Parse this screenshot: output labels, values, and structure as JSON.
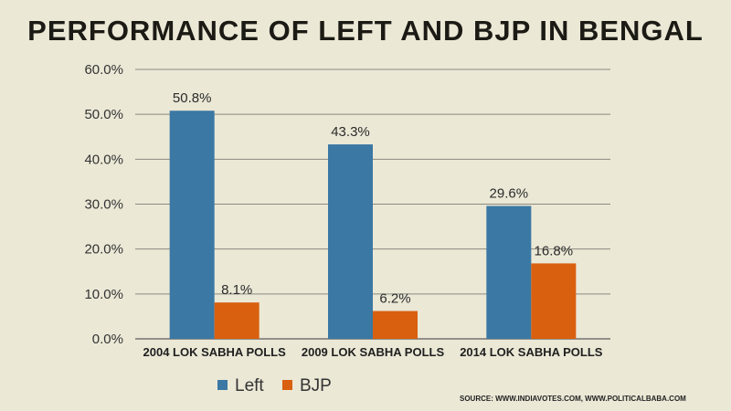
{
  "chart_data": {
    "type": "bar",
    "title": "PERFORMANCE OF LEFT AND BJP IN BENGAL",
    "categories": [
      "2004 LOK SABHA  POLLS",
      "2009 LOK SABHA  POLLS",
      "2014 LOK SABHA  POLLS"
    ],
    "series": [
      {
        "name": "Left",
        "values": [
          50.8,
          43.3,
          29.6
        ],
        "labels": [
          "50.8%",
          "43.3%",
          "29.6%"
        ],
        "color": "#3b78a3"
      },
      {
        "name": "BJP",
        "values": [
          8.1,
          6.2,
          16.8
        ],
        "labels": [
          "8.1%",
          "6.2%",
          "16.8%"
        ],
        "color": "#d9600f"
      }
    ],
    "ylim": [
      0,
      60
    ],
    "yticks": [
      "0.0%",
      "10.0%",
      "20.0%",
      "30.0%",
      "40.0%",
      "50.0%",
      "60.0%"
    ],
    "grid": true,
    "legend_position": "bottom-left",
    "source": "SOURCE: WWW.INDIAVOTES.COM, WWW.POLITICALBABA.COM"
  }
}
